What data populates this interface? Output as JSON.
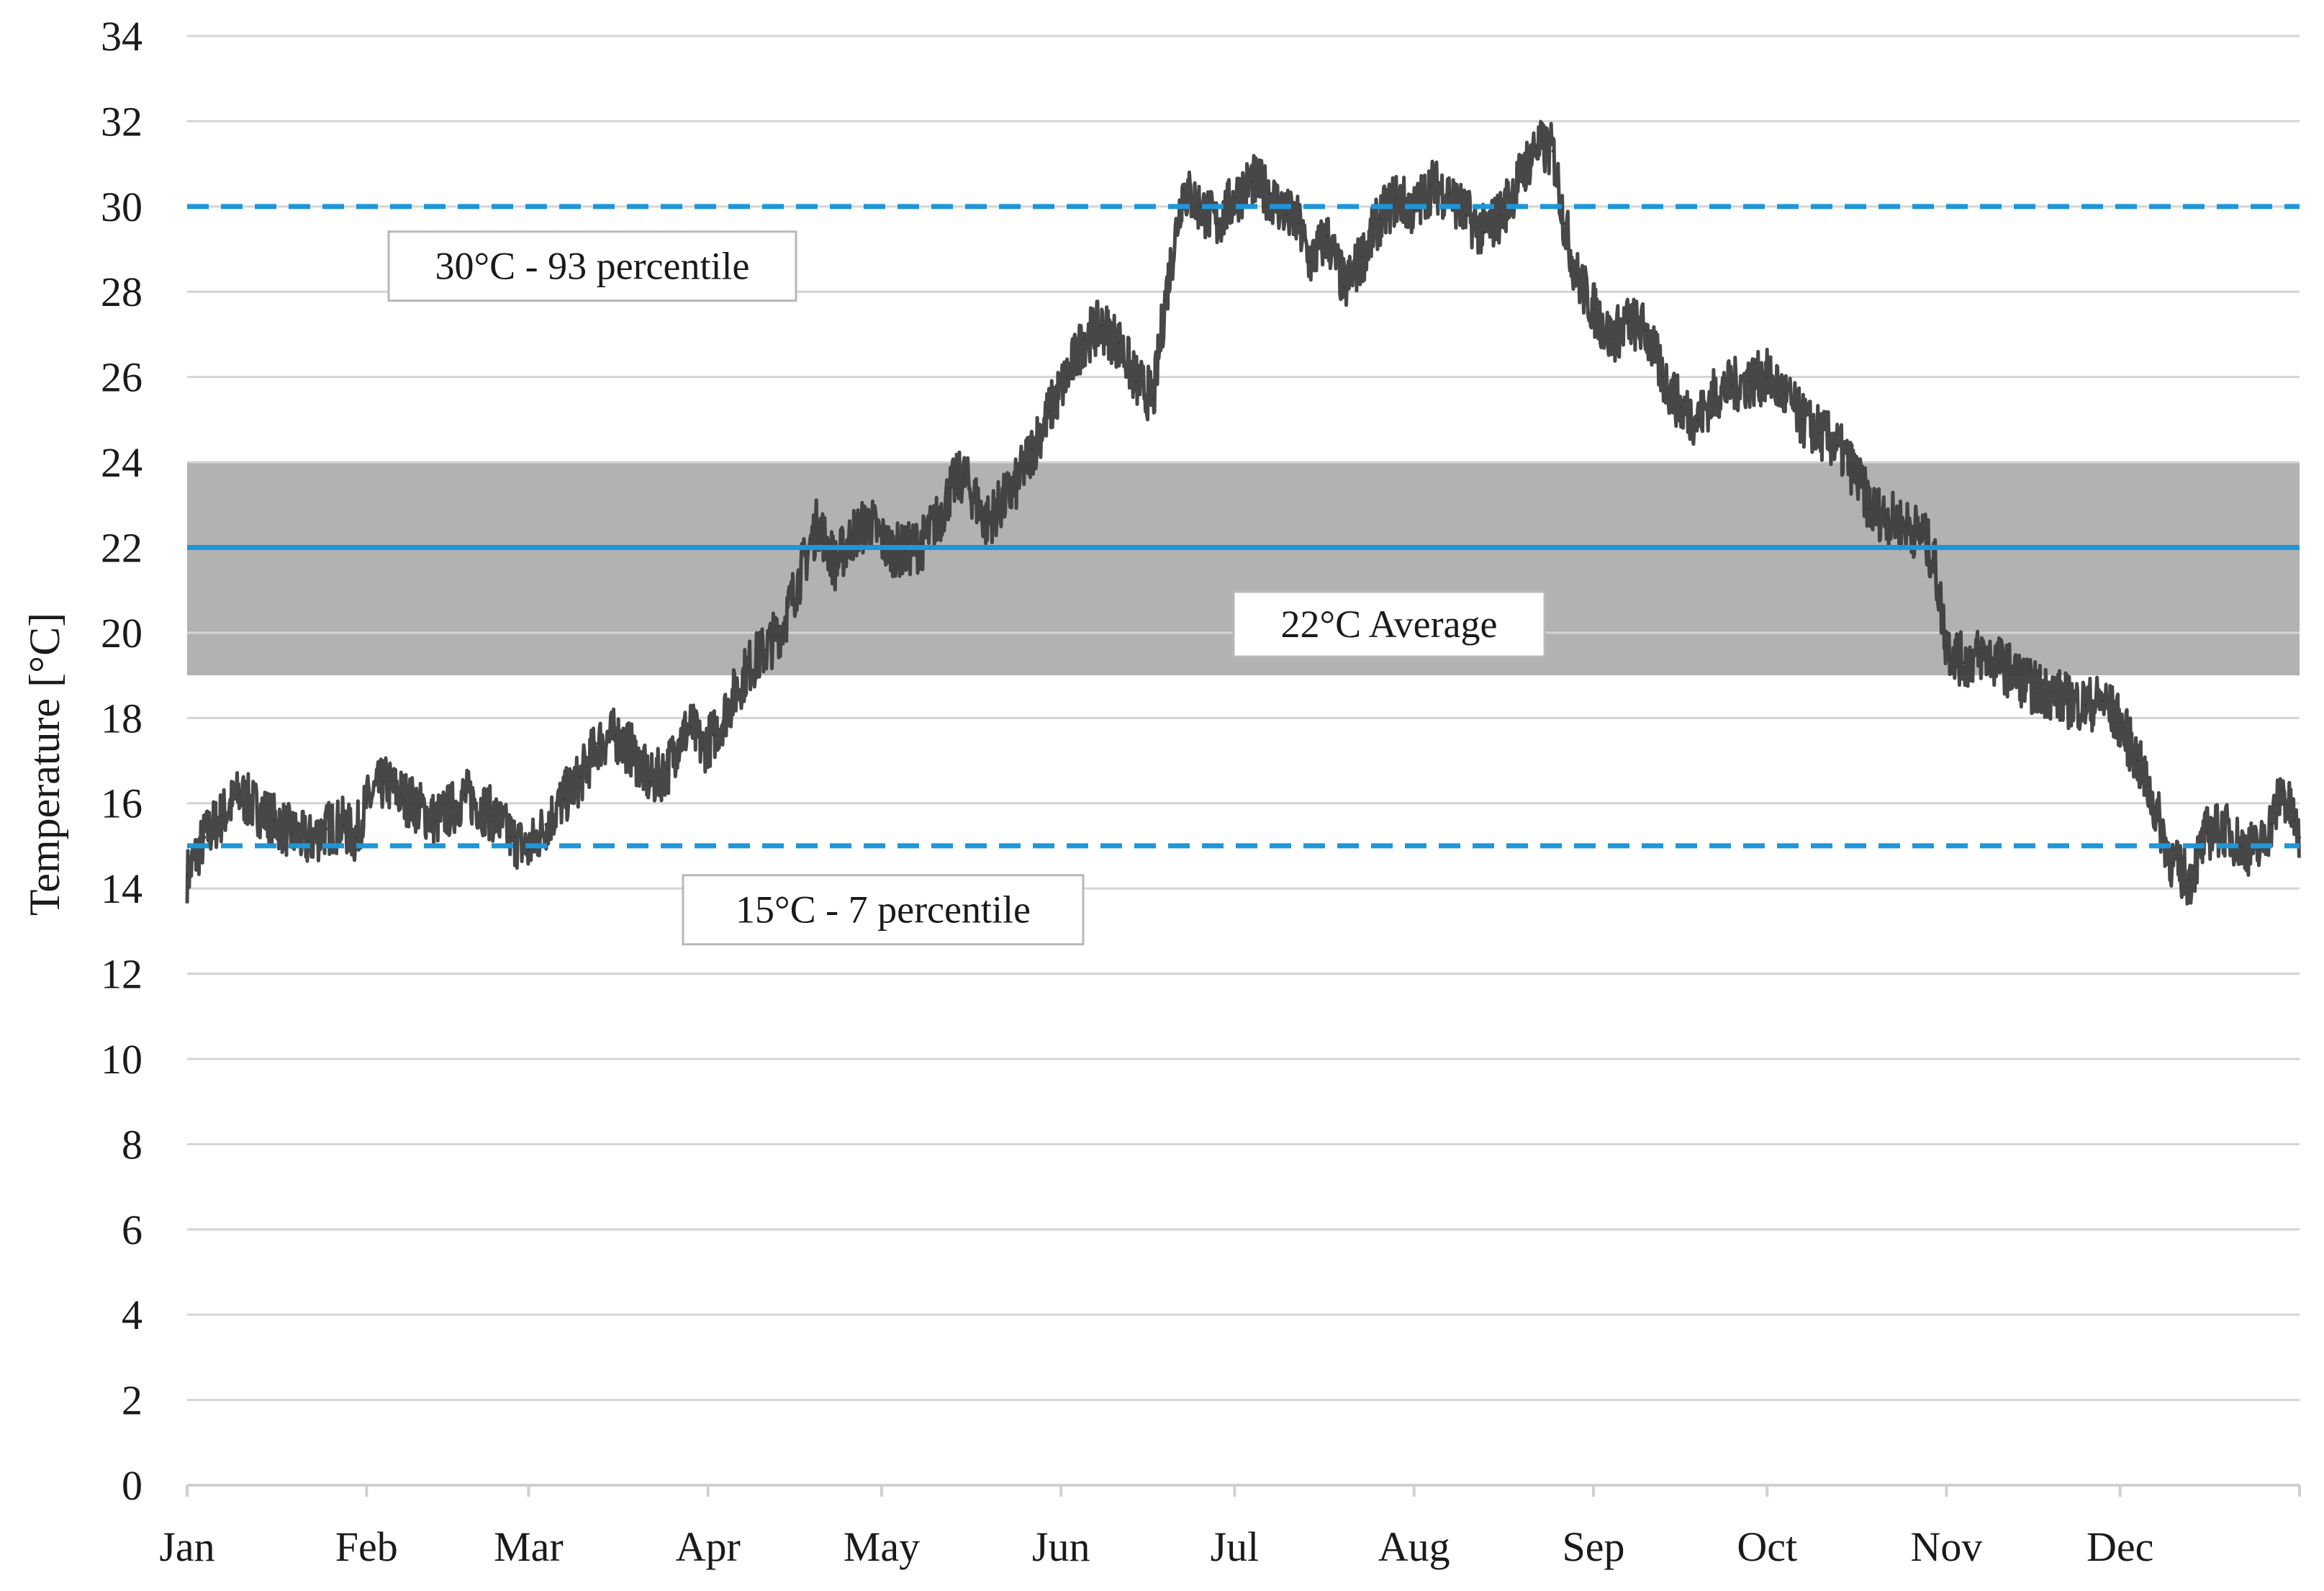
{
  "chart_data": {
    "type": "line",
    "ylabel": "Temperature [°C]",
    "ylim": [
      0,
      34
    ],
    "yticks": [
      0,
      2,
      4,
      6,
      8,
      10,
      12,
      14,
      16,
      18,
      20,
      22,
      24,
      26,
      28,
      30,
      32,
      34
    ],
    "months": [
      "Jan",
      "Feb",
      "Mar",
      "Apr",
      "May",
      "Jun",
      "Jul",
      "Aug",
      "Sep",
      "Oct",
      "Nov",
      "Dec"
    ],
    "month_start_days": [
      0,
      31,
      59,
      90,
      120,
      151,
      181,
      212,
      243,
      273,
      304,
      334
    ],
    "xlim_days": [
      0,
      365
    ],
    "grid": true,
    "band": {
      "low": 19,
      "high": 24,
      "color": "#b2b2b2"
    },
    "reference_lines": [
      {
        "value": 30,
        "style": "dashed",
        "color": "#1e96d8",
        "label": "30°C - 93 percentile"
      },
      {
        "value": 22,
        "style": "solid",
        "color": "#1e96d8",
        "label": "22°C Average"
      },
      {
        "value": 15,
        "style": "dashed",
        "color": "#1e96d8",
        "label": "15°C - 7 percentile"
      }
    ],
    "series": [
      {
        "color": "#3d3d3d",
        "points": [
          [
            0,
            14.3
          ],
          [
            3,
            15.2
          ],
          [
            6,
            15.7
          ],
          [
            9,
            16.2
          ],
          [
            12,
            15.9
          ],
          [
            15,
            15.6
          ],
          [
            18,
            15.3
          ],
          [
            21,
            15.1
          ],
          [
            24,
            15.4
          ],
          [
            27,
            15.5
          ],
          [
            29,
            15.2
          ],
          [
            31,
            16.0
          ],
          [
            34,
            16.5
          ],
          [
            37,
            16.2
          ],
          [
            40,
            15.9
          ],
          [
            43,
            15.6
          ],
          [
            46,
            15.9
          ],
          [
            48,
            16.2
          ],
          [
            50,
            16.0
          ],
          [
            53,
            15.7
          ],
          [
            56,
            15.2
          ],
          [
            59,
            14.9
          ],
          [
            62,
            15.5
          ],
          [
            65,
            16.1
          ],
          [
            68,
            16.6
          ],
          [
            71,
            17.4
          ],
          [
            74,
            17.6
          ],
          [
            77,
            17.2
          ],
          [
            80,
            16.5
          ],
          [
            83,
            16.8
          ],
          [
            85,
            17.5
          ],
          [
            87,
            17.8
          ],
          [
            89,
            17.3
          ],
          [
            91,
            17.6
          ],
          [
            94,
            18.4
          ],
          [
            97,
            19.2
          ],
          [
            100,
            19.6
          ],
          [
            103,
            20.2
          ],
          [
            106,
            21.4
          ],
          [
            109,
            22.6
          ],
          [
            112,
            21.6
          ],
          [
            115,
            22.3
          ],
          [
            118,
            22.6
          ],
          [
            121,
            22.0
          ],
          [
            124,
            21.9
          ],
          [
            127,
            22.1
          ],
          [
            130,
            22.7
          ],
          [
            132,
            23.4
          ],
          [
            134,
            23.7
          ],
          [
            136,
            23.2
          ],
          [
            138,
            22.6
          ],
          [
            140,
            22.9
          ],
          [
            143,
            23.4
          ],
          [
            146,
            24.3
          ],
          [
            149,
            25.2
          ],
          [
            152,
            26.0
          ],
          [
            155,
            26.9
          ],
          [
            158,
            27.2
          ],
          [
            161,
            26.8
          ],
          [
            164,
            25.9
          ],
          [
            167,
            25.5
          ],
          [
            169,
            27.8
          ],
          [
            172,
            30.4
          ],
          [
            175,
            30.0
          ],
          [
            178,
            29.6
          ],
          [
            181,
            30.2
          ],
          [
            184,
            30.6
          ],
          [
            187,
            30.3
          ],
          [
            190,
            29.8
          ],
          [
            192,
            29.6
          ],
          [
            194,
            28.7
          ],
          [
            197,
            29.3
          ],
          [
            200,
            28.1
          ],
          [
            203,
            28.8
          ],
          [
            206,
            29.7
          ],
          [
            209,
            30.2
          ],
          [
            212,
            29.9
          ],
          [
            215,
            30.5
          ],
          [
            218,
            30.3
          ],
          [
            221,
            29.8
          ],
          [
            224,
            29.4
          ],
          [
            227,
            29.8
          ],
          [
            230,
            30.6
          ],
          [
            233,
            31.4
          ],
          [
            236,
            31.3
          ],
          [
            238,
            29.6
          ],
          [
            240,
            28.4
          ],
          [
            243,
            27.6
          ],
          [
            246,
            26.9
          ],
          [
            249,
            27.3
          ],
          [
            252,
            27.1
          ],
          [
            255,
            26.0
          ],
          [
            258,
            25.3
          ],
          [
            261,
            25.0
          ],
          [
            264,
            25.6
          ],
          [
            267,
            25.8
          ],
          [
            270,
            25.9
          ],
          [
            273,
            26.0
          ],
          [
            276,
            25.6
          ],
          [
            279,
            25.0
          ],
          [
            282,
            24.7
          ],
          [
            285,
            24.4
          ],
          [
            288,
            23.8
          ],
          [
            291,
            22.9
          ],
          [
            294,
            22.7
          ],
          [
            297,
            22.5
          ],
          [
            300,
            22.3
          ],
          [
            302,
            21.6
          ],
          [
            304,
            19.7
          ],
          [
            307,
            19.3
          ],
          [
            310,
            19.5
          ],
          [
            313,
            19.3
          ],
          [
            316,
            19.0
          ],
          [
            319,
            18.7
          ],
          [
            322,
            18.6
          ],
          [
            325,
            18.4
          ],
          [
            328,
            18.3
          ],
          [
            331,
            18.4
          ],
          [
            334,
            17.9
          ],
          [
            337,
            17.0
          ],
          [
            340,
            15.9
          ],
          [
            343,
            14.6
          ],
          [
            346,
            14.2
          ],
          [
            349,
            15.3
          ],
          [
            352,
            15.4
          ],
          [
            355,
            15.0
          ],
          [
            358,
            14.9
          ],
          [
            360,
            15.5
          ],
          [
            362,
            16.3
          ],
          [
            364,
            15.6
          ],
          [
            365,
            15.2
          ]
        ]
      }
    ]
  }
}
